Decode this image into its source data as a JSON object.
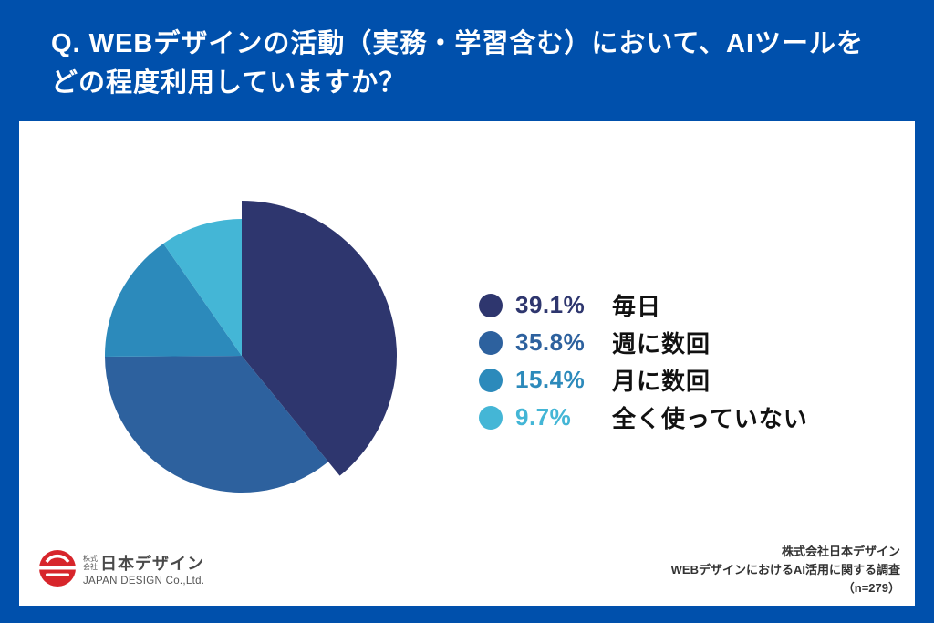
{
  "title": "Q. WEBデザインの活動（実務・学習含む）において、AIツールをどの程度利用していますか？",
  "colors": {
    "background": "#0050AC",
    "card": "#FFFFFF",
    "title_text": "#FFFFFF",
    "legend_label_text": "#111111",
    "footer_text": "#333333",
    "logo_red": "#D7252B"
  },
  "chart_data": {
    "type": "pie",
    "title": "Q. WEBデザインの活動（実務・学習含む）において、AIツールをどの程度利用していますか？",
    "categories": [
      "毎日",
      "週に数回",
      "月に数回",
      "全く使っていない"
    ],
    "values": [
      39.1,
      35.8,
      15.4,
      9.7
    ],
    "unit": "%",
    "colors": [
      "#2E366E",
      "#2D619E",
      "#2C8ABB",
      "#44B6D6"
    ],
    "start_angle_deg": 0,
    "direction": "clockwise",
    "emphasized_slice": "毎日",
    "emphasized_radius": 170,
    "base_radius": 150,
    "legend_position": "right",
    "sample_size": "n=279"
  },
  "legend": {
    "items": [
      {
        "slug": "daily",
        "percent": "39.1%",
        "label": "毎日",
        "color": "#2E366E"
      },
      {
        "slug": "few-times-a-week",
        "percent": "35.8%",
        "label": "週に数回",
        "color": "#2D619E"
      },
      {
        "slug": "few-times-a-month",
        "percent": "15.4%",
        "label": "月に数回",
        "color": "#2C8ABB"
      },
      {
        "slug": "never",
        "percent": "9.7%",
        "label": "全く使っていない",
        "color": "#44B6D6"
      }
    ]
  },
  "logo": {
    "prefix_top": "株式",
    "prefix_bottom": "会社",
    "name": "日本デザイン",
    "name_en": "JAPAN DESIGN Co.,Ltd."
  },
  "footer": {
    "line1": "株式会社日本デザイン",
    "line2": "WEBデザインにおけるAI活用に関する調査",
    "line3": "（n=279）"
  }
}
